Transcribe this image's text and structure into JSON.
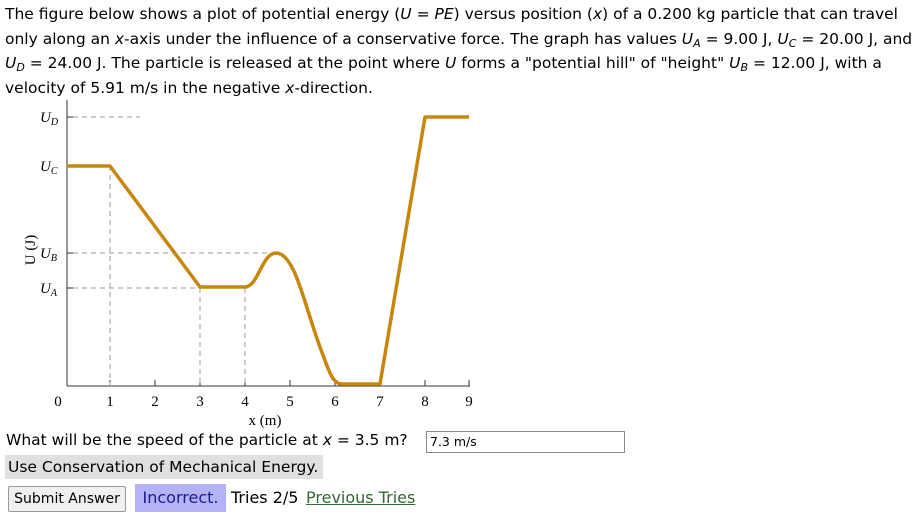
{
  "problem": {
    "runs": [
      "The figure below shows a plot of potential energy (",
      "U",
      " = ",
      "PE",
      ") versus position (",
      "x",
      ") of a 0.200 kg particle that can travel only along an ",
      "x",
      "-axis under the influence of a conservative force. The graph has values ",
      "U",
      "A",
      " = 9.00 J, ",
      "U",
      "C",
      " = 20.00 J, and ",
      "U",
      "D",
      " = 24.00 J. The particle is released at the point where ",
      "U",
      " forms a \"potential hill\" of \"height\" ",
      "U",
      "B",
      " = 12.00 J, with a velocity of 5.91 m/s in the negative ",
      "x",
      "-direction."
    ]
  },
  "figure": {
    "y_axis_label": "U (J)",
    "x_axis_label": "x (m)",
    "y_labels": [
      {
        "symbol": "U",
        "sub": "D"
      },
      {
        "symbol": "U",
        "sub": "C"
      },
      {
        "symbol": "U",
        "sub": "B"
      },
      {
        "symbol": "U",
        "sub": "A"
      }
    ],
    "x_ticks": [
      "0",
      "1",
      "2",
      "3",
      "4",
      "5",
      "6",
      "7",
      "8",
      "9"
    ]
  },
  "question": {
    "runs": [
      "What will be the speed of the particle at ",
      "x",
      " = 3.5 m?"
    ],
    "answer": "7.3 m/s"
  },
  "hint": "Use Conservation of Mechanical Energy.",
  "submit": "Submit Answer",
  "status": {
    "result": "Incorrect.",
    "tries": "Tries 2/5",
    "previous": "Previous Tries"
  }
}
